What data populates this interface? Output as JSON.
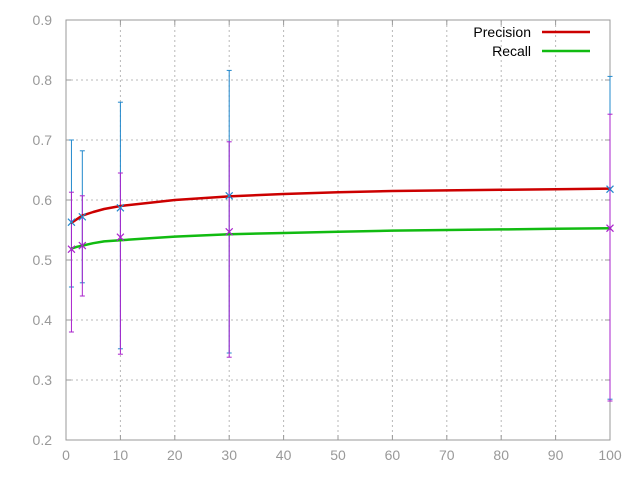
{
  "chart_data": {
    "type": "line",
    "title": "",
    "xlabel": "",
    "ylabel": "",
    "xlim": [
      0,
      100
    ],
    "ylim": [
      0.2,
      0.9
    ],
    "xticks": [
      "0",
      "10",
      "20",
      "30",
      "40",
      "50",
      "60",
      "70",
      "80",
      "90",
      "100"
    ],
    "yticks": [
      "0.2",
      "0.3",
      "0.4",
      "0.5",
      "0.6",
      "0.7",
      "0.8",
      "0.9"
    ],
    "grid": true,
    "legend_position": "top-right",
    "colors": {
      "precision": "#cc0000",
      "recall": "#11bb11",
      "precision_err": "#2288cc",
      "recall_err": "#aa22cc"
    },
    "series": [
      {
        "name": "Precision",
        "line": {
          "x": [
            1,
            2,
            3,
            5,
            7,
            10,
            15,
            20,
            30,
            40,
            50,
            60,
            70,
            80,
            90,
            100
          ],
          "y": [
            0.562,
            0.568,
            0.574,
            0.58,
            0.585,
            0.59,
            0.595,
            0.6,
            0.606,
            0.61,
            0.613,
            0.615,
            0.616,
            0.617,
            0.618,
            0.619
          ]
        },
        "points": [
          {
            "x": 1,
            "y": 0.563,
            "low": 0.455,
            "high": 0.7
          },
          {
            "x": 3,
            "y": 0.572,
            "low": 0.462,
            "high": 0.682
          },
          {
            "x": 10,
            "y": 0.587,
            "low": 0.352,
            "high": 0.763
          },
          {
            "x": 30,
            "y": 0.607,
            "low": 0.345,
            "high": 0.816
          },
          {
            "x": 100,
            "y": 0.618,
            "low": 0.268,
            "high": 0.806
          }
        ]
      },
      {
        "name": "Recall",
        "line": {
          "x": [
            1,
            2,
            3,
            5,
            7,
            10,
            15,
            20,
            30,
            40,
            50,
            60,
            70,
            80,
            90,
            100
          ],
          "y": [
            0.519,
            0.522,
            0.524,
            0.528,
            0.531,
            0.533,
            0.536,
            0.539,
            0.543,
            0.545,
            0.547,
            0.549,
            0.55,
            0.551,
            0.552,
            0.553
          ]
        },
        "points": [
          {
            "x": 1,
            "y": 0.518,
            "low": 0.38,
            "high": 0.613
          },
          {
            "x": 3,
            "y": 0.524,
            "low": 0.44,
            "high": 0.607
          },
          {
            "x": 10,
            "y": 0.538,
            "low": 0.343,
            "high": 0.645
          },
          {
            "x": 30,
            "y": 0.547,
            "low": 0.338,
            "high": 0.697
          },
          {
            "x": 100,
            "y": 0.553,
            "low": 0.265,
            "high": 0.743
          }
        ]
      }
    ]
  }
}
